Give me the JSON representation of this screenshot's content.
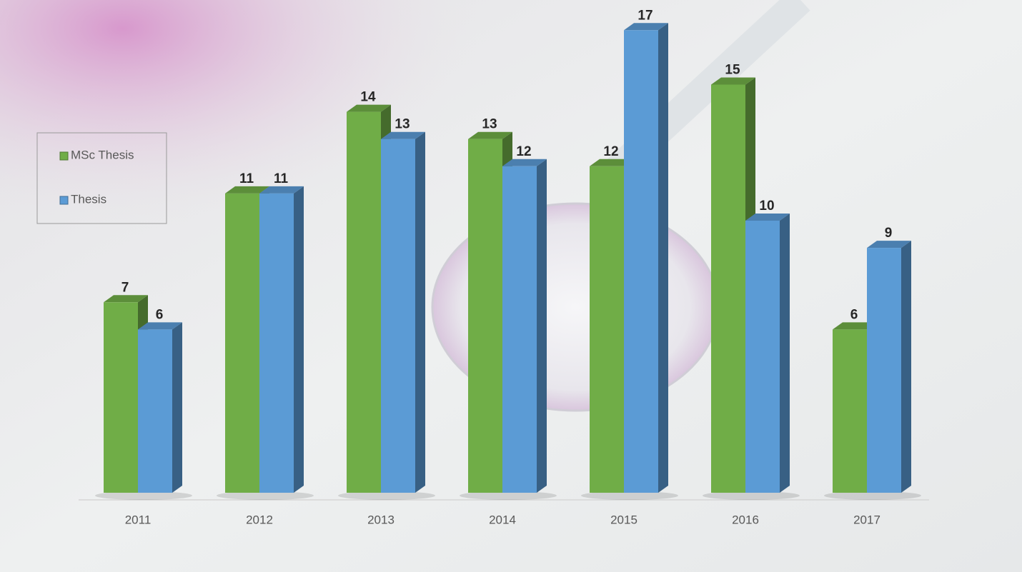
{
  "chart_data": {
    "type": "bar3d",
    "categories": [
      "2011",
      "2012",
      "2013",
      "2014",
      "2015",
      "2016",
      "2017"
    ],
    "series": [
      {
        "name": "MSc Thesis",
        "color": "#70ad47",
        "values": [
          7,
          11,
          14,
          13,
          12,
          15,
          6
        ]
      },
      {
        "name": "Thesis",
        "color": "#5b9bd5",
        "values": [
          6,
          11,
          13,
          12,
          17,
          10,
          9
        ]
      }
    ],
    "data_labels": true,
    "legend": "left"
  }
}
